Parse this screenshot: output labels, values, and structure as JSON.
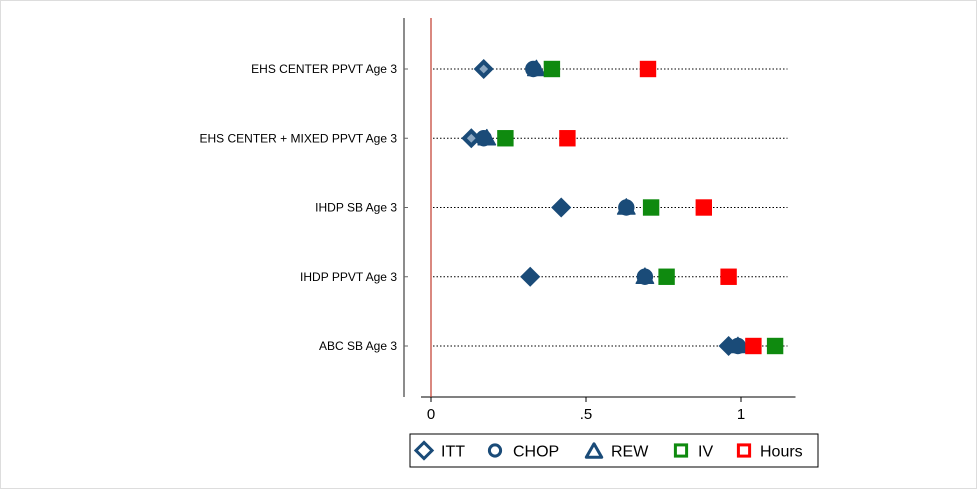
{
  "chart_data": {
    "type": "scatter",
    "orientation": "horizontal-dot-plot",
    "categories": [
      "EHS CENTER PPVT Age 3",
      "EHS CENTER + MIXED PPVT Age 3",
      "IHDP SB Age 3",
      "IHDP PPVT Age 3",
      "ABC SB Age 3"
    ],
    "xlim": [
      0,
      1.15
    ],
    "xticks": [
      {
        "value": 0,
        "label": "0"
      },
      {
        "value": 0.5,
        "label": ".5"
      },
      {
        "value": 1,
        "label": "1"
      }
    ],
    "reference_line": {
      "x": 0,
      "color": "#c0392b"
    },
    "row_guides": {
      "style": "dotted",
      "x_end": 1.15
    },
    "legend_position": "bottom",
    "series": [
      {
        "name": "ITT",
        "marker": "diamond",
        "color": "#1a4b78",
        "values": [
          0.17,
          0.13,
          0.42,
          0.32,
          0.96
        ]
      },
      {
        "name": "CHOP",
        "marker": "circle",
        "color": "#1a4b78",
        "values": [
          0.33,
          0.17,
          0.63,
          0.69,
          0.99
        ]
      },
      {
        "name": "REW",
        "marker": "triangle",
        "color": "#1a4b78",
        "values": [
          0.34,
          0.18,
          0.63,
          0.69,
          0.99
        ]
      },
      {
        "name": "IV",
        "marker": "square",
        "color": "#0f8a0f",
        "values": [
          0.39,
          0.24,
          0.71,
          0.76,
          1.11
        ]
      },
      {
        "name": "Hours",
        "marker": "square",
        "color": "#ff0000",
        "values": [
          0.7,
          0.44,
          0.88,
          0.96,
          1.04
        ]
      }
    ]
  }
}
